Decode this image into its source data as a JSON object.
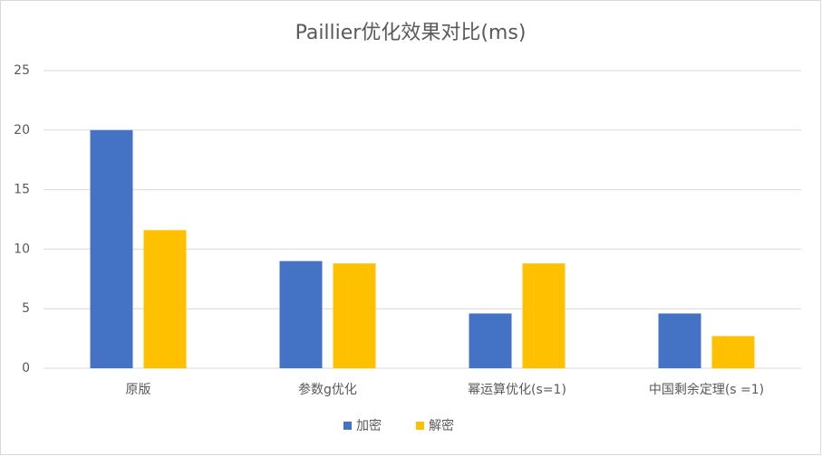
{
  "chart_data": {
    "type": "bar",
    "title": "Paillier优化效果对比(ms)",
    "categories": [
      "原版",
      "参数g优化",
      "幂运算优化(s=1)",
      "中国剩余定理(s =1)"
    ],
    "series": [
      {
        "name": "加密",
        "color": "#4472c4",
        "values": [
          20.0,
          9.0,
          4.6,
          4.6
        ]
      },
      {
        "name": "解密",
        "color": "#ffc000",
        "values": [
          11.6,
          8.8,
          8.8,
          2.7
        ]
      }
    ],
    "ylim": [
      0,
      25
    ],
    "yticks": [
      0,
      5,
      10,
      15,
      20,
      25
    ],
    "grid": true,
    "legend": "bottom"
  }
}
